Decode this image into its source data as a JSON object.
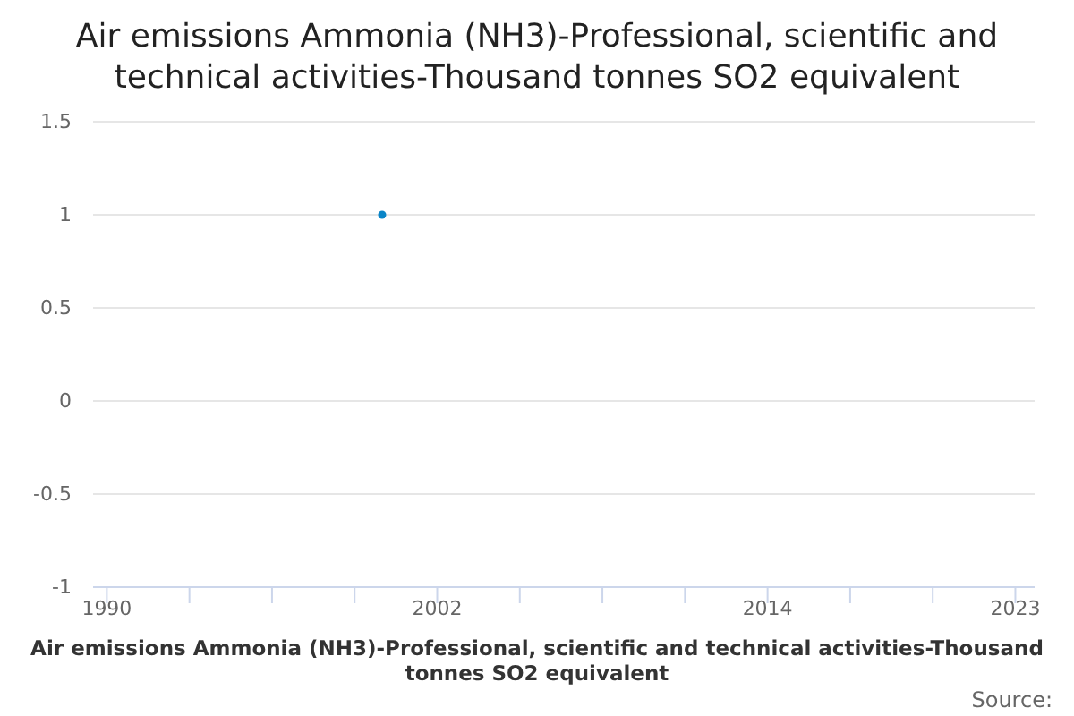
{
  "chart_data": {
    "type": "line",
    "title": "Air emissions Ammonia (NH3)-Professional, scientific and technical activities-Thousand tonnes SO2 equivalent",
    "xlabel": "Air emissions Ammonia (NH3)-Professional, scientific and technical activities-Thousand tonnes SO2 equivalent",
    "annotations": [
      "Source:"
    ],
    "x": [
      2000
    ],
    "series": [
      {
        "color": "#0a85c7",
        "values": [
          1
        ]
      }
    ],
    "xlim": [
      1989.5,
      2023.7
    ],
    "xticks": [
      1990,
      {
        "value": 1993,
        "label": null
      },
      {
        "value": 1996,
        "label": null
      },
      {
        "value": 1999,
        "label": null
      },
      2002,
      {
        "value": 2005,
        "label": null
      },
      {
        "value": 2008,
        "label": null
      },
      {
        "value": 2011,
        "label": null
      },
      2014,
      {
        "value": 2017,
        "label": null
      },
      {
        "value": 2020,
        "label": null
      },
      2023
    ],
    "ylim": [
      -1,
      1.5
    ],
    "yticks": [
      -1,
      -0.5,
      0,
      0.5,
      1,
      1.5
    ],
    "grid": "y",
    "marker": "circle"
  }
}
